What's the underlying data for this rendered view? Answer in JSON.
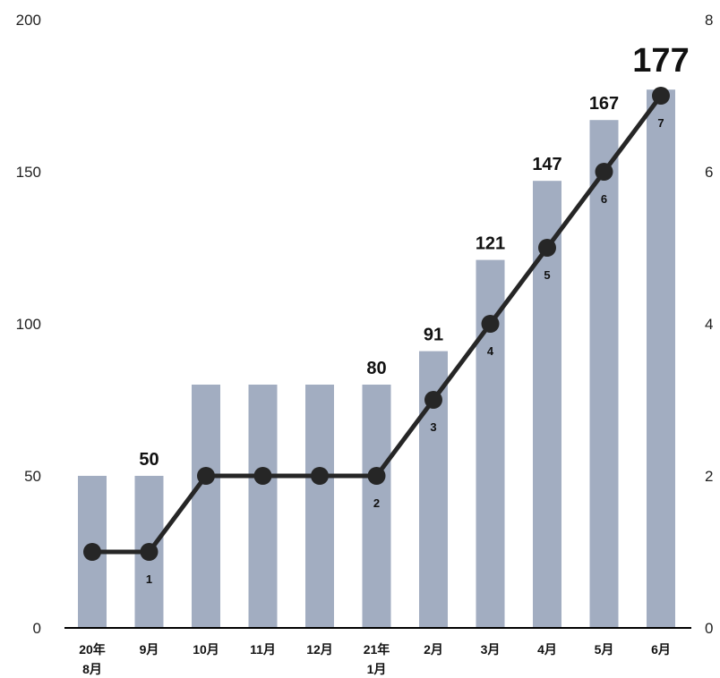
{
  "chart_data": {
    "type": "bar",
    "categories": [
      "20年 8月",
      "9月",
      "10月",
      "11月",
      "12月",
      "21年 1月",
      "2月",
      "3月",
      "4月",
      "5月",
      "6月"
    ],
    "series": [
      {
        "type": "bar",
        "axis": "left",
        "values": [
          50,
          50,
          80,
          80,
          80,
          80,
          91,
          121,
          147,
          167,
          177
        ]
      },
      {
        "type": "line",
        "axis": "right",
        "values": [
          1,
          1,
          2,
          2,
          2,
          2,
          3,
          4,
          5,
          6,
          7
        ]
      }
    ],
    "bar_value_labels": [
      "",
      "50",
      "",
      "",
      "",
      "80",
      "91",
      "121",
      "147",
      "167",
      "177"
    ],
    "line_value_labels": [
      "",
      "1",
      "",
      "",
      "",
      "2",
      "3",
      "4",
      "5",
      "6",
      "7"
    ],
    "y_left": {
      "min": 0,
      "max": 200,
      "ticks": [
        "0",
        "50",
        "100",
        "150",
        "200"
      ]
    },
    "y_right": {
      "min": 0,
      "max": 8,
      "ticks": [
        "0",
        "2",
        "4",
        "6",
        "8"
      ]
    },
    "grid": false,
    "legend": "none",
    "colors": {
      "bar": "#a2adc1",
      "line": "#262626",
      "axis": "#000000"
    }
  }
}
